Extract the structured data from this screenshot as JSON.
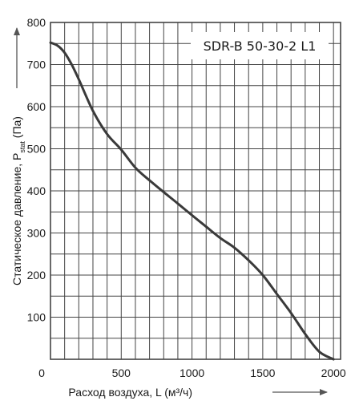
{
  "chart_data": {
    "type": "line",
    "title": "SDR-B 50-30-2 L1",
    "xlabel": "Расход воздуха, L (м³/ч)",
    "ylabel_main": "Статическое давление, P",
    "ylabel_sub": "stat",
    "ylabel_unit": " (Па)",
    "xlim": [
      0,
      2050
    ],
    "ylim": [
      0,
      800
    ],
    "xticks": [
      0,
      500,
      1000,
      1500,
      2000
    ],
    "yticks": [
      100,
      200,
      300,
      400,
      500,
      600,
      700,
      800
    ],
    "grid": true,
    "series": [
      {
        "color": "#3a3a3a",
        "x": [
          0,
          50,
          100,
          150,
          200,
          300,
          400,
          500,
          600,
          700,
          800,
          900,
          1000,
          1100,
          1200,
          1300,
          1400,
          1500,
          1600,
          1700,
          1800,
          1900,
          2000
        ],
        "y": [
          752,
          745,
          728,
          700,
          665,
          590,
          535,
          498,
          455,
          425,
          397,
          370,
          342,
          315,
          288,
          265,
          235,
          200,
          155,
          110,
          60,
          18,
          0
        ]
      }
    ]
  }
}
